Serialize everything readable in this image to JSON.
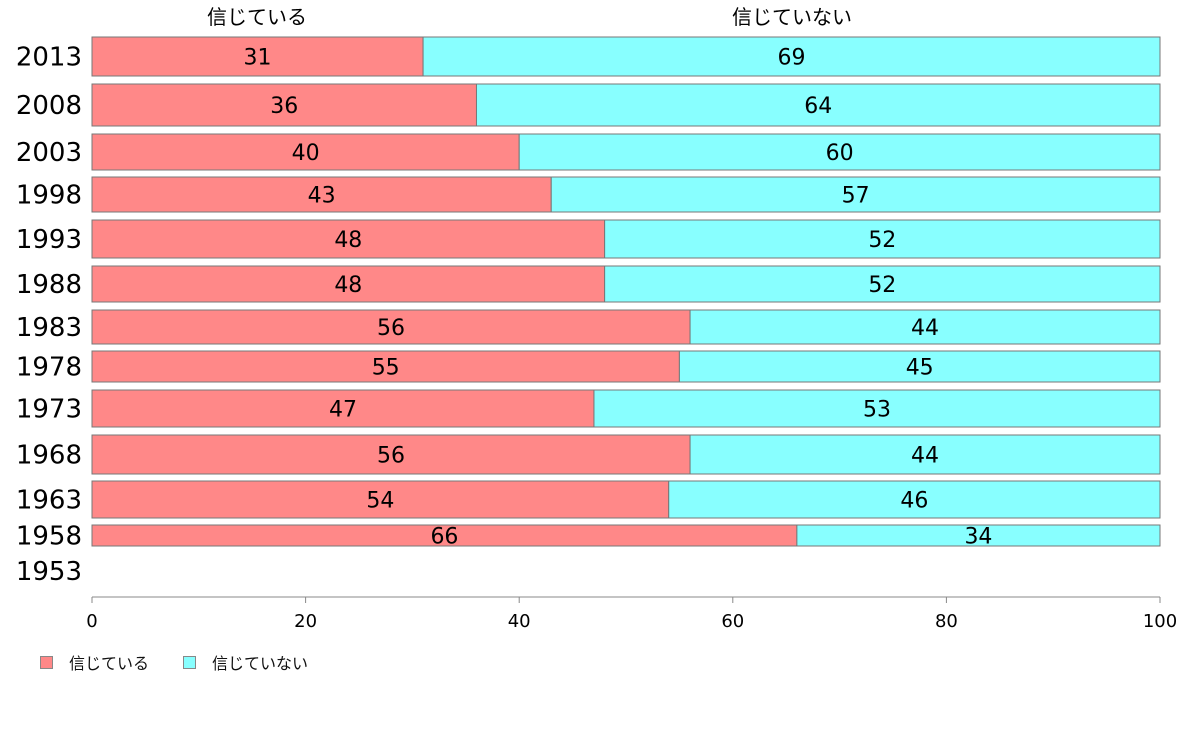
{
  "chart_data": {
    "type": "bar",
    "orientation": "horizontal",
    "stacked": true,
    "categories": [
      "2013",
      "2008",
      "2003",
      "1998",
      "1993",
      "1988",
      "1983",
      "1978",
      "1973",
      "1968",
      "1963",
      "1958",
      "1953"
    ],
    "series": [
      {
        "name": "信じている",
        "color": "#ff8888",
        "values": [
          31,
          36,
          40,
          43,
          48,
          48,
          56,
          55,
          47,
          56,
          54,
          66,
          null
        ],
        "labels": [
          "31",
          "36",
          "40",
          "43",
          "48",
          "48",
          "56",
          "55",
          "47",
          "56",
          "54",
          "66",
          ""
        ]
      },
      {
        "name": "信じていない",
        "color": "#88ffff",
        "values": [
          69,
          64,
          60,
          57,
          52,
          52,
          44,
          45,
          53,
          44,
          46,
          34,
          null
        ],
        "labels": [
          "69",
          "64",
          "60",
          "57",
          "52",
          "52",
          "44",
          "45",
          "53",
          "44",
          "46",
          "34",
          ""
        ]
      }
    ],
    "column_headers": [
      "信じている",
      "信じていない"
    ],
    "xlim": [
      0,
      100
    ],
    "xticks": [
      0,
      20,
      40,
      60,
      80,
      100
    ],
    "xlabel": "",
    "ylabel": "",
    "title": "",
    "grid": false,
    "legend_position": "bottom-left"
  }
}
